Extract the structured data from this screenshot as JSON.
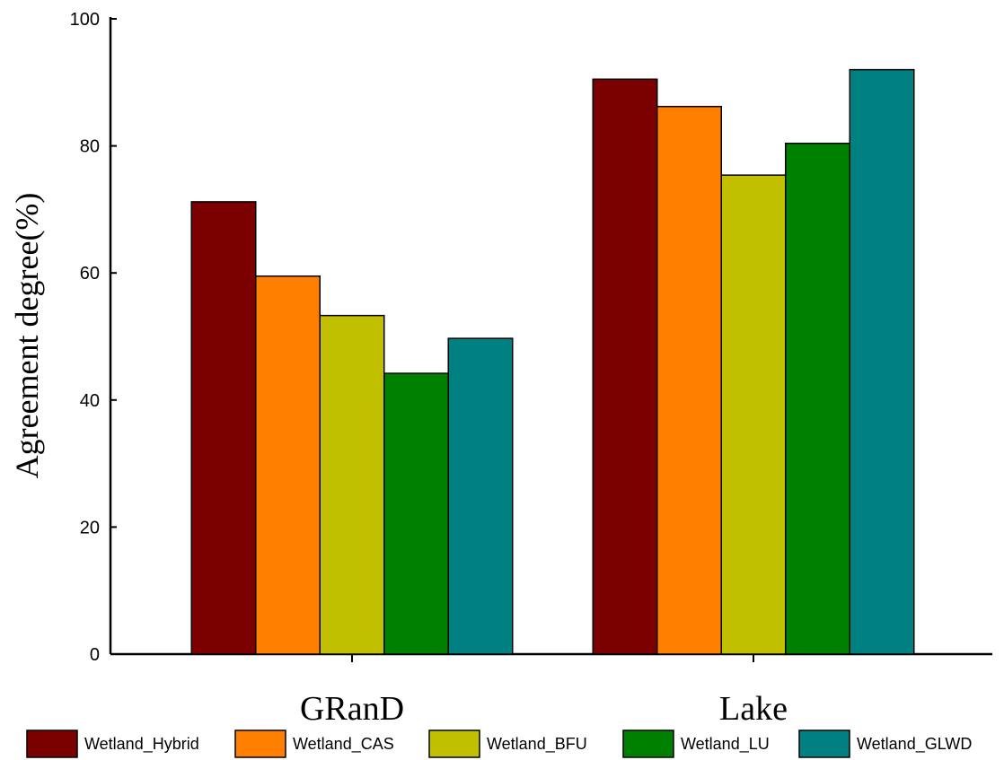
{
  "chart_data": {
    "type": "bar",
    "categories": [
      "GRanD",
      "Lake"
    ],
    "series": [
      {
        "name": "Wetland_Hybrid",
        "values": [
          71.2,
          90.5
        ],
        "color": "#7b0000"
      },
      {
        "name": "Wetland_CAS",
        "values": [
          59.5,
          86.2
        ],
        "color": "#ff7f00"
      },
      {
        "name": "Wetland_BFU",
        "values": [
          53.3,
          75.4
        ],
        "color": "#c0c000"
      },
      {
        "name": "Wetland_LU",
        "values": [
          44.2,
          80.4
        ],
        "color": "#008000"
      },
      {
        "name": "Wetland_GLWD",
        "values": [
          49.7,
          92.0
        ],
        "color": "#008080"
      }
    ],
    "xlabel": "",
    "ylabel": "Agreement degree(%)",
    "ylim": [
      0,
      100
    ],
    "yticks": [
      "0",
      "20",
      "40",
      "60",
      "80",
      "100"
    ],
    "grid": false,
    "legend_position": "bottom"
  }
}
